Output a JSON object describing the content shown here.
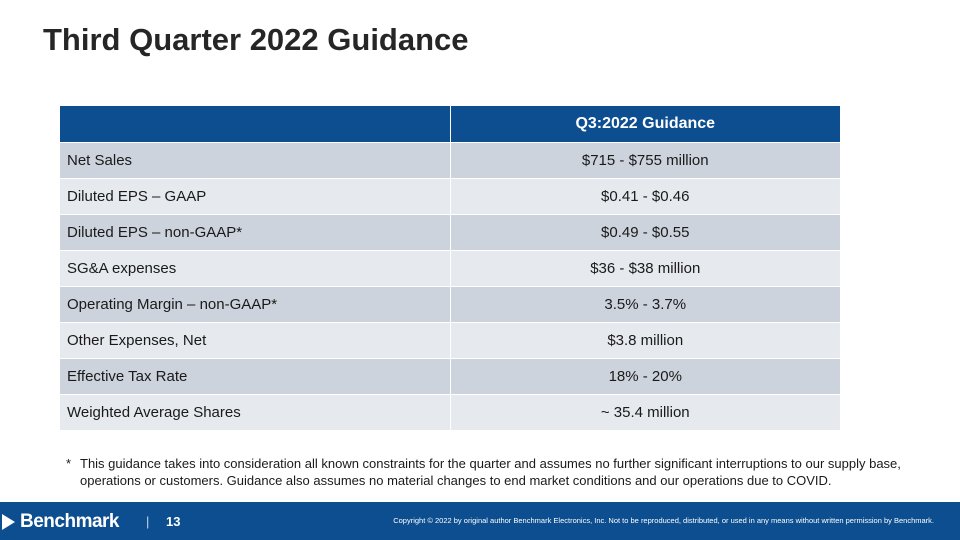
{
  "slide": {
    "title": "Third Quarter 2022 Guidance"
  },
  "table": {
    "header": [
      "",
      "Q3:2022 Guidance"
    ],
    "rows": [
      {
        "label": "Net Sales",
        "value": "$715 - $755 million"
      },
      {
        "label": "Diluted EPS – GAAP",
        "value": "$0.41 - $0.46"
      },
      {
        "label": "Diluted EPS – non-GAAP*",
        "value": "$0.49 - $0.55"
      },
      {
        "label": "SG&A expenses",
        "value": "$36 - $38 million"
      },
      {
        "label": "Operating Margin – non-GAAP*",
        "value": "3.5% - 3.7%"
      },
      {
        "label": "Other Expenses, Net",
        "value": "$3.8 million"
      },
      {
        "label": "Effective Tax Rate",
        "value": "18% - 20%"
      },
      {
        "label": "Weighted Average Shares",
        "value": "~ 35.4 million"
      }
    ]
  },
  "footnote": {
    "mark": "*",
    "text": "This guidance takes into consideration all known constraints for the quarter and assumes no further significant interruptions to our supply base, operations or customers. Guidance also assumes no material changes to end market conditions and our operations due to COVID."
  },
  "footer": {
    "logo_text": "Benchmark",
    "separator": "|",
    "page_number": "13",
    "copyright": "Copyright © 2022 by original author Benchmark Electronics, Inc. Not to be reproduced, distributed, or used in any means without written permission by Benchmark."
  },
  "colors": {
    "header_blue": "#0c4e8f",
    "row_dark": "#cdd3dc",
    "row_light": "#e6e9ee",
    "footer_blue": "#0c4e8f"
  }
}
